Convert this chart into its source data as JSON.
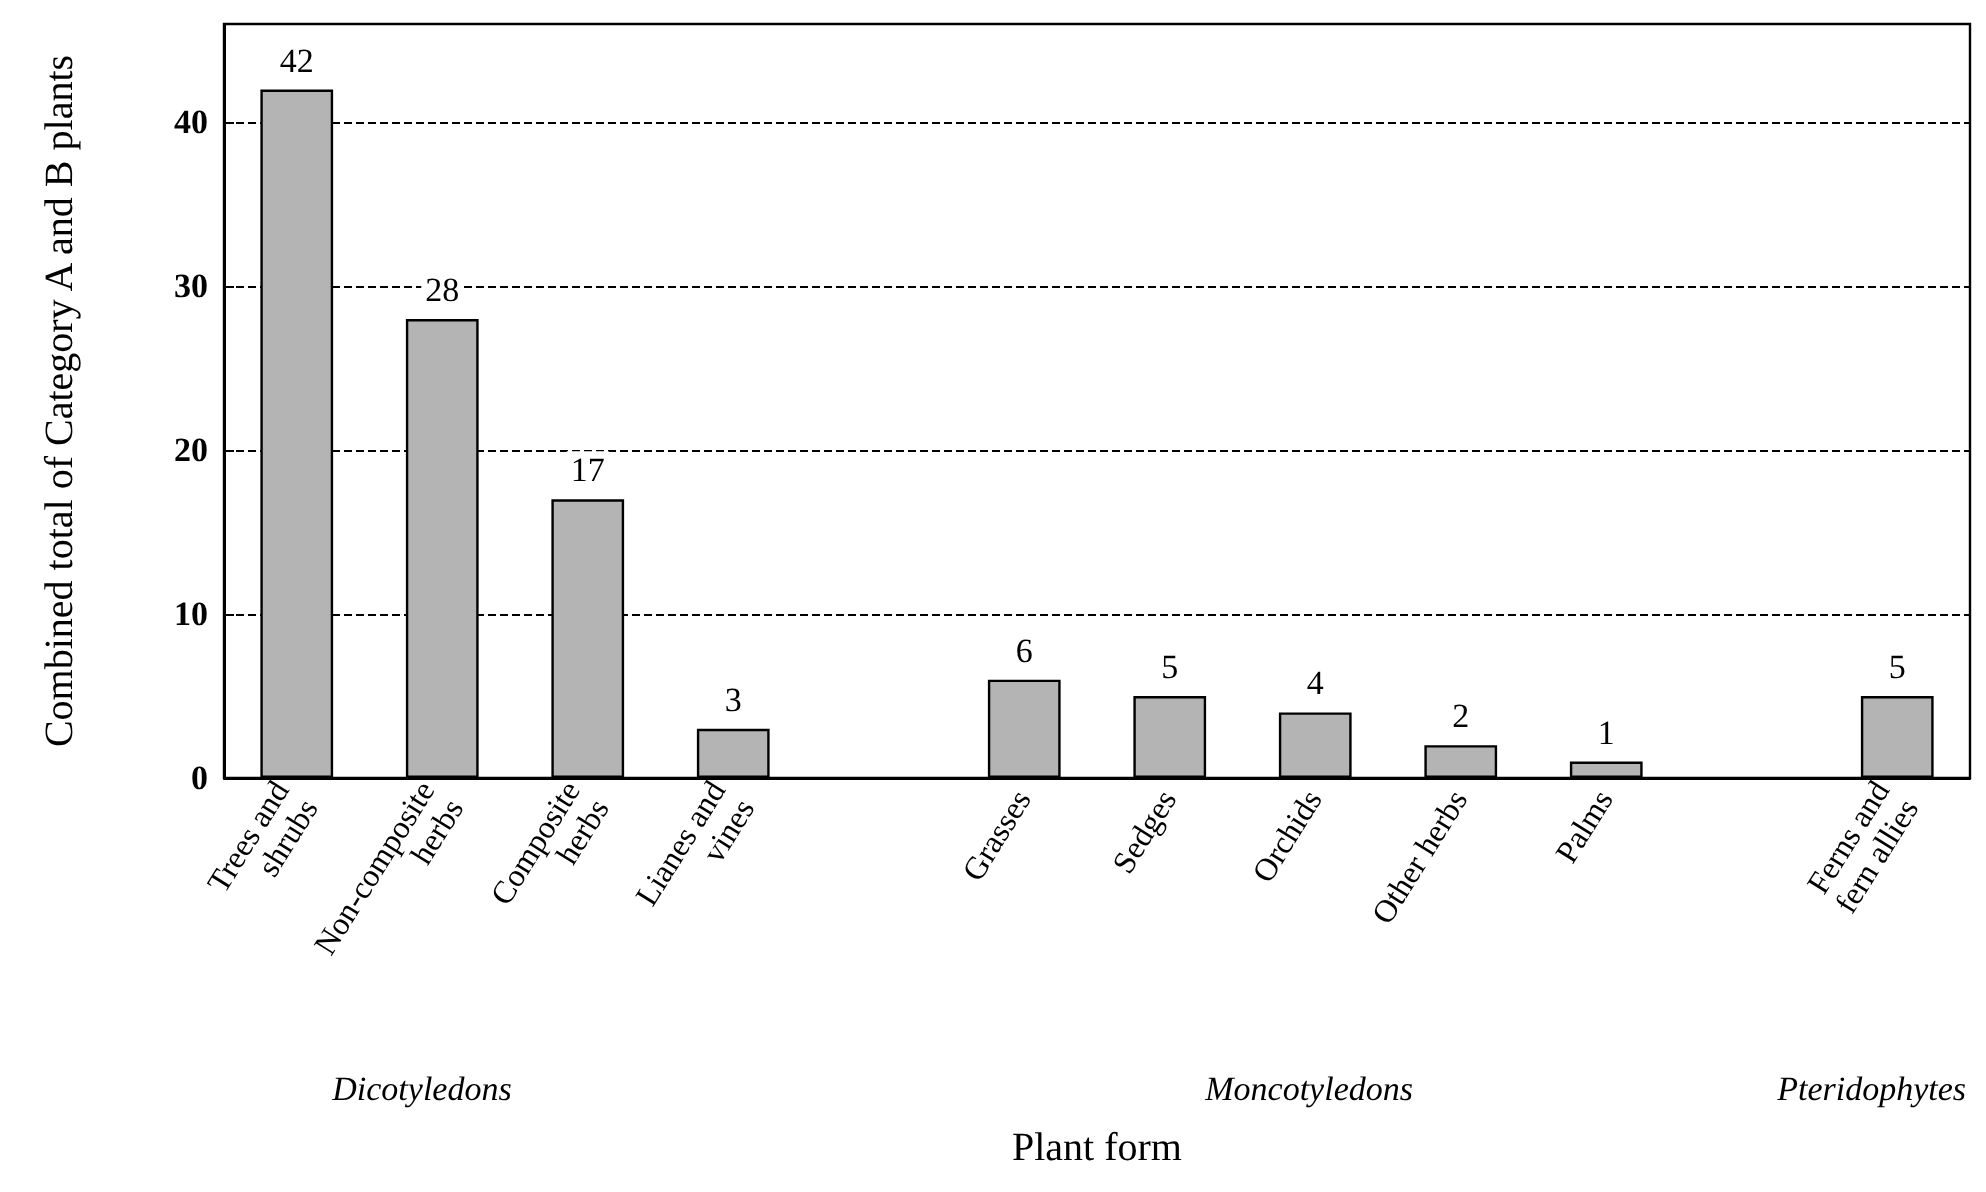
{
  "chart_data": {
    "type": "bar",
    "xlabel": "Plant form",
    "ylabel": "Combined total of Category A and B plants",
    "categories": [
      "Trees and\nshrubs",
      "Non-composite\nherbs",
      "Composite\nherbs",
      "Lianes and\nvines",
      null,
      "Grasses",
      "Sedges",
      "Orchids",
      "Other herbs",
      "Palms",
      null,
      "Ferns and\nfern allies"
    ],
    "values": [
      42,
      28,
      17,
      3,
      null,
      6,
      5,
      4,
      2,
      1,
      null,
      5
    ],
    "color": "#b4b4b4",
    "data_labels": true,
    "ylim": [
      0,
      46
    ],
    "yticks": [
      0,
      10,
      20,
      30,
      40
    ],
    "grid": "y",
    "annotations": [
      "Dicotyledons",
      "Moncotyledons",
      "Pteridophytes"
    ]
  }
}
